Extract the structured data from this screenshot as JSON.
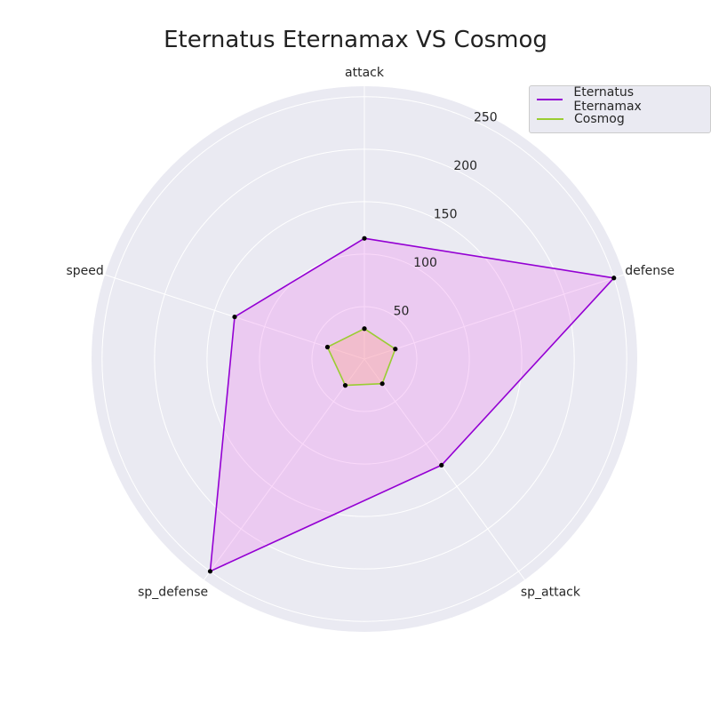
{
  "chart_data": {
    "type": "radar",
    "title": "Eternatus Eternamax VS Cosmog",
    "axes": [
      "attack",
      "defense",
      "sp_attack",
      "sp_defense",
      "speed"
    ],
    "rlim": [
      0,
      260
    ],
    "rticks": [
      50,
      100,
      150,
      200,
      250
    ],
    "grid": true,
    "legend_position": "top-right",
    "series": [
      {
        "name": "Eternatus Eternamax",
        "values": [
          115,
          250,
          125,
          250,
          130
        ],
        "line_color": "#9400d3",
        "fill_color": "#ee82ee"
      },
      {
        "name": "Cosmog",
        "values": [
          29,
          31,
          29,
          31,
          37
        ],
        "line_color": "#9acd32",
        "fill_color": "#ffa07a"
      }
    ],
    "colors": {
      "background": "#eaeaf2",
      "grid": "#ffffff",
      "marker": "#000000"
    }
  }
}
